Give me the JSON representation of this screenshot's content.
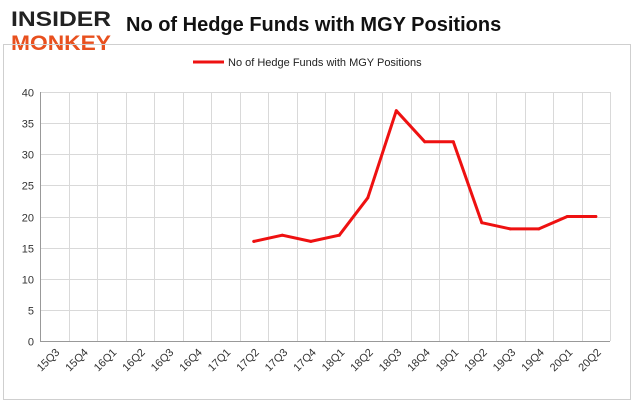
{
  "logo": {
    "line1": "INSIDER",
    "line2": "MONKEY"
  },
  "chart_data": {
    "type": "line",
    "title": "No of Hedge Funds with MGY Positions",
    "xlabel": "",
    "ylabel": "",
    "categories": [
      "15Q3",
      "15Q4",
      "16Q1",
      "16Q2",
      "16Q3",
      "16Q4",
      "17Q1",
      "17Q2",
      "17Q3",
      "17Q4",
      "18Q1",
      "18Q2",
      "18Q3",
      "18Q4",
      "19Q1",
      "19Q2",
      "19Q3",
      "19Q4",
      "20Q1",
      "20Q2"
    ],
    "series": [
      {
        "name": "No of Hedge Funds with MGY Positions",
        "color": "#ee1111",
        "values": [
          null,
          null,
          null,
          null,
          null,
          null,
          null,
          16,
          17,
          16,
          17,
          23,
          37,
          32,
          32,
          19,
          18,
          18,
          20,
          20
        ]
      }
    ],
    "ylim": [
      0,
      40
    ],
    "yticks": [
      "0",
      "5",
      "10",
      "15",
      "20",
      "25",
      "30",
      "35",
      "40"
    ],
    "grid": true,
    "legend": "top-center"
  }
}
